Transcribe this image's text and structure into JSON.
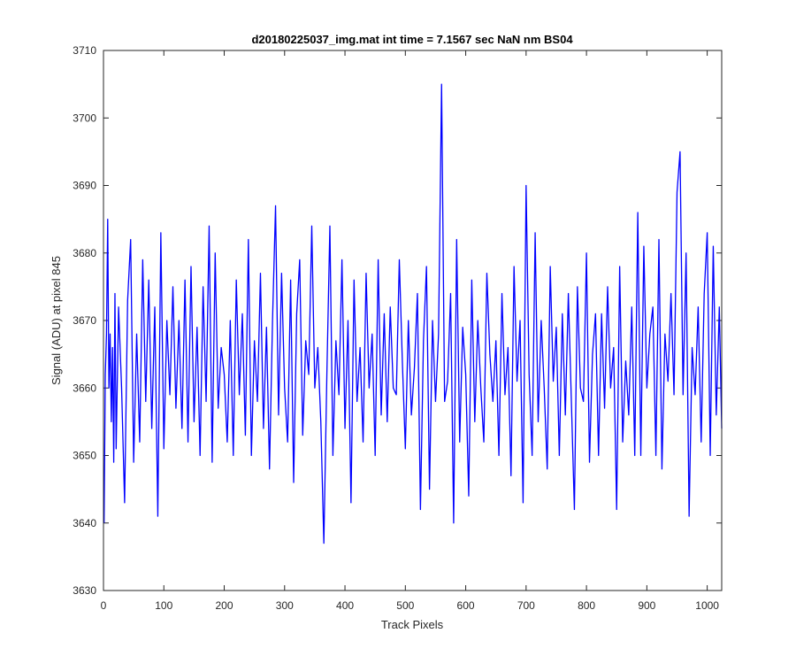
{
  "chart_data": {
    "type": "line",
    "title": "d20180225037_img.mat int time = 7.1567 sec  NaN nm BS04",
    "xlabel": "Track Pixels",
    "ylabel": "Signal (ADU) at pixel 845",
    "xlim": [
      0,
      1024
    ],
    "ylim": [
      3630,
      3710
    ],
    "xticks": [
      0,
      100,
      200,
      300,
      400,
      500,
      600,
      700,
      800,
      900,
      1000
    ],
    "yticks": [
      3630,
      3640,
      3650,
      3660,
      3670,
      3680,
      3690,
      3700,
      3710
    ],
    "grid": false,
    "series": [
      {
        "color": "#0000ff",
        "x": [
          1,
          3,
          5,
          7,
          9,
          11,
          13,
          15,
          17,
          19,
          21,
          25,
          30,
          35,
          40,
          45,
          50,
          55,
          60,
          65,
          70,
          75,
          80,
          85,
          90,
          95,
          100,
          105,
          110,
          115,
          120,
          125,
          130,
          135,
          140,
          145,
          150,
          155,
          160,
          165,
          170,
          175,
          180,
          185,
          190,
          195,
          200,
          205,
          210,
          215,
          220,
          225,
          230,
          235,
          240,
          245,
          250,
          255,
          260,
          265,
          270,
          275,
          280,
          285,
          290,
          295,
          300,
          305,
          310,
          315,
          320,
          325,
          330,
          335,
          340,
          345,
          350,
          355,
          360,
          365,
          370,
          375,
          380,
          385,
          390,
          395,
          400,
          405,
          410,
          415,
          420,
          425,
          430,
          435,
          440,
          445,
          450,
          455,
          460,
          465,
          470,
          475,
          480,
          485,
          490,
          495,
          500,
          505,
          510,
          515,
          520,
          525,
          530,
          535,
          540,
          545,
          550,
          555,
          560,
          565,
          570,
          575,
          580,
          585,
          590,
          595,
          600,
          605,
          610,
          615,
          620,
          625,
          630,
          635,
          640,
          645,
          650,
          655,
          660,
          665,
          670,
          675,
          680,
          685,
          690,
          695,
          700,
          705,
          710,
          715,
          720,
          725,
          730,
          735,
          740,
          745,
          750,
          755,
          760,
          765,
          770,
          775,
          780,
          785,
          790,
          795,
          800,
          805,
          810,
          815,
          820,
          825,
          830,
          835,
          840,
          845,
          850,
          855,
          860,
          865,
          870,
          875,
          880,
          885,
          890,
          895,
          900,
          905,
          910,
          915,
          920,
          925,
          930,
          935,
          940,
          945,
          950,
          955,
          960,
          965,
          970,
          975,
          980,
          985,
          990,
          995,
          1000,
          1005,
          1010,
          1015,
          1020,
          1024
        ],
        "y": [
          3640,
          3662,
          3668,
          3685,
          3660,
          3668,
          3655,
          3666,
          3649,
          3674,
          3651,
          3672,
          3660,
          3643,
          3673,
          3682,
          3649,
          3668,
          3652,
          3679,
          3658,
          3676,
          3654,
          3672,
          3641,
          3683,
          3651,
          3670,
          3659,
          3675,
          3657,
          3670,
          3654,
          3676,
          3652,
          3678,
          3655,
          3669,
          3650,
          3675,
          3658,
          3684,
          3649,
          3680,
          3657,
          3666,
          3662,
          3652,
          3670,
          3650,
          3676,
          3659,
          3671,
          3653,
          3682,
          3650,
          3667,
          3658,
          3677,
          3654,
          3669,
          3648,
          3670,
          3687,
          3656,
          3677,
          3660,
          3652,
          3676,
          3646,
          3671,
          3679,
          3653,
          3667,
          3662,
          3684,
          3660,
          3666,
          3655,
          3637,
          3662,
          3684,
          3650,
          3667,
          3659,
          3679,
          3654,
          3670,
          3643,
          3676,
          3658,
          3666,
          3652,
          3677,
          3660,
          3668,
          3650,
          3679,
          3656,
          3671,
          3655,
          3672,
          3660,
          3659,
          3679,
          3664,
          3651,
          3670,
          3656,
          3663,
          3674,
          3642,
          3667,
          3678,
          3645,
          3670,
          3658,
          3668,
          3705,
          3658,
          3661,
          3674,
          3640,
          3682,
          3652,
          3669,
          3662,
          3644,
          3676,
          3655,
          3670,
          3660,
          3652,
          3677,
          3665,
          3658,
          3667,
          3650,
          3674,
          3659,
          3666,
          3647,
          3678,
          3661,
          3670,
          3643,
          3690,
          3662,
          3650,
          3683,
          3655,
          3670,
          3660,
          3648,
          3678,
          3661,
          3669,
          3650,
          3671,
          3656,
          3674,
          3658,
          3642,
          3675,
          3660,
          3658,
          3680,
          3649,
          3665,
          3671,
          3650,
          3671,
          3657,
          3675,
          3660,
          3666,
          3642,
          3678,
          3652,
          3664,
          3656,
          3672,
          3650,
          3686,
          3650,
          3681,
          3660,
          3668,
          3672,
          3650,
          3682,
          3648,
          3668,
          3661,
          3674,
          3659,
          3689,
          3695,
          3659,
          3680,
          3641,
          3666,
          3659,
          3672,
          3652,
          3674,
          3683,
          3650,
          3681,
          3656,
          3672,
          3654
        ]
      }
    ]
  }
}
